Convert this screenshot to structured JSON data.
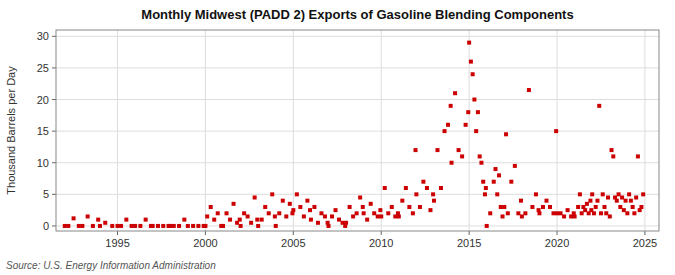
{
  "chart_data": {
    "type": "scatter",
    "title": "Monthly Midwest (PADD 2) Exports of Gasoline Blending Components",
    "y_label": "Thousand Barrels per Day",
    "annotations": [
      "Source: U.S. Energy Information Administration"
    ],
    "color": "#cc0000",
    "marker": "square",
    "grid": true,
    "xlim": [
      1991.5,
      2025.8
    ],
    "ylim": [
      -0.8,
      31
    ],
    "xticks": [
      1995,
      2000,
      2005,
      2010,
      2015,
      2020,
      2025
    ],
    "yticks": [
      0,
      5,
      10,
      15,
      20,
      25,
      30
    ],
    "x": [
      1992.0,
      1992.2,
      1992.5,
      1992.8,
      1993.0,
      1993.3,
      1993.6,
      1993.9,
      1994.0,
      1994.3,
      1994.7,
      1995.0,
      1995.2,
      1995.5,
      1995.8,
      1996.0,
      1996.3,
      1996.6,
      1996.9,
      1997.0,
      1997.3,
      1997.6,
      1997.9,
      1998.0,
      1998.2,
      1998.5,
      1998.8,
      1999.0,
      1999.3,
      1999.6,
      1999.9,
      2000.0,
      2000.1,
      2000.3,
      2000.5,
      2000.7,
      2000.9,
      2001.0,
      2001.2,
      2001.4,
      2001.6,
      2001.8,
      2001.95,
      2002.0,
      2002.2,
      2002.4,
      2002.6,
      2002.8,
      2002.95,
      2003.0,
      2003.2,
      2003.4,
      2003.6,
      2003.8,
      2003.95,
      2004.0,
      2004.2,
      2004.4,
      2004.6,
      2004.8,
      2004.95,
      2005.0,
      2005.2,
      2005.4,
      2005.6,
      2005.8,
      2005.95,
      2006.0,
      2006.2,
      2006.4,
      2006.6,
      2006.8,
      2006.95,
      2007.0,
      2007.2,
      2007.4,
      2007.6,
      2007.8,
      2007.95,
      2008.0,
      2008.2,
      2008.4,
      2008.6,
      2008.8,
      2008.95,
      2009.0,
      2009.2,
      2009.4,
      2009.6,
      2009.8,
      2009.95,
      2010.0,
      2010.2,
      2010.4,
      2010.6,
      2010.8,
      2010.95,
      2011.0,
      2011.2,
      2011.4,
      2011.6,
      2011.8,
      2011.95,
      2012.0,
      2012.2,
      2012.4,
      2012.6,
      2012.8,
      2012.95,
      2013.0,
      2013.2,
      2013.4,
      2013.6,
      2013.8,
      2013.95,
      2014.0,
      2014.2,
      2014.4,
      2014.6,
      2014.8,
      2014.95,
      2015.0,
      2015.1,
      2015.2,
      2015.3,
      2015.4,
      2015.5,
      2015.6,
      2015.7,
      2015.8,
      2015.9,
      2015.95,
      2016.0,
      2016.2,
      2016.4,
      2016.5,
      2016.6,
      2016.7,
      2016.8,
      2016.9,
      2017.0,
      2017.1,
      2017.2,
      2017.4,
      2017.6,
      2017.8,
      2017.95,
      2018.0,
      2018.2,
      2018.4,
      2018.6,
      2018.8,
      2018.95,
      2019.0,
      2019.2,
      2019.4,
      2019.6,
      2019.8,
      2019.95,
      2020.0,
      2020.2,
      2020.4,
      2020.6,
      2020.8,
      2020.95,
      2021.0,
      2021.2,
      2021.3,
      2021.4,
      2021.5,
      2021.6,
      2021.7,
      2021.8,
      2021.9,
      2021.95,
      2022.0,
      2022.1,
      2022.2,
      2022.3,
      2022.4,
      2022.5,
      2022.6,
      2022.7,
      2022.8,
      2022.9,
      2023.0,
      2023.1,
      2023.2,
      2023.3,
      2023.4,
      2023.5,
      2023.6,
      2023.7,
      2023.8,
      2023.9,
      2024.0,
      2024.1,
      2024.2,
      2024.3,
      2024.4,
      2024.5,
      2024.6,
      2024.7,
      2024.8,
      2024.9
    ],
    "values": [
      0.0,
      0.0,
      1.2,
      0.0,
      0.0,
      1.5,
      0.0,
      1.0,
      0.0,
      0.5,
      0.0,
      0.0,
      0.0,
      1.0,
      0.0,
      0.0,
      0.0,
      1.0,
      0.0,
      0.0,
      0.0,
      0.0,
      0.0,
      0.0,
      0.0,
      0.0,
      1.0,
      0.0,
      0.0,
      0.0,
      0.0,
      0.0,
      1.5,
      3.0,
      1.0,
      2.0,
      0.0,
      0.0,
      2.0,
      1.0,
      3.5,
      0.5,
      1.0,
      0.0,
      2.0,
      1.5,
      0.5,
      4.5,
      1.0,
      0.0,
      1.0,
      3.0,
      2.0,
      5.0,
      1.5,
      0.0,
      2.0,
      4.0,
      1.5,
      3.5,
      2.0,
      2.5,
      5.0,
      3.0,
      1.5,
      4.0,
      2.5,
      1.0,
      3.0,
      0.5,
      2.0,
      1.5,
      0.5,
      0.0,
      1.5,
      2.5,
      1.0,
      0.5,
      0.0,
      0.5,
      3.0,
      1.5,
      2.0,
      4.5,
      3.0,
      2.0,
      1.0,
      3.5,
      2.0,
      1.5,
      2.5,
      1.5,
      6.0,
      2.0,
      3.0,
      1.5,
      2.0,
      1.5,
      4.0,
      6.0,
      3.0,
      2.0,
      12.0,
      5.0,
      3.0,
      7.0,
      6.0,
      2.5,
      5.0,
      4.0,
      12.0,
      6.0,
      15.0,
      16.0,
      19.0,
      10.0,
      21.0,
      12.0,
      11.0,
      16.0,
      18.0,
      29.0,
      26.0,
      24.0,
      20.0,
      15.0,
      18.0,
      11.0,
      10.0,
      7.0,
      5.0,
      6.0,
      0.0,
      2.0,
      7.0,
      9.0,
      5.0,
      8.0,
      3.0,
      1.5,
      3.0,
      14.5,
      2.0,
      7.0,
      9.5,
      2.0,
      4.0,
      1.5,
      2.0,
      21.5,
      3.0,
      5.0,
      2.5,
      2.0,
      3.0,
      4.0,
      3.0,
      2.0,
      15.0,
      2.0,
      2.0,
      1.5,
      2.5,
      1.5,
      2.0,
      1.5,
      3.0,
      5.0,
      2.0,
      3.0,
      2.5,
      3.5,
      2.0,
      4.0,
      2.5,
      5.0,
      2.0,
      3.0,
      4.0,
      19.0,
      2.0,
      5.0,
      3.0,
      2.0,
      4.5,
      1.5,
      12.0,
      11.0,
      4.5,
      4.0,
      5.0,
      3.0,
      4.5,
      2.5,
      4.0,
      2.0,
      5.0,
      4.0,
      3.0,
      2.0,
      4.5,
      11.0,
      2.5,
      3.0,
      5.0
    ]
  }
}
